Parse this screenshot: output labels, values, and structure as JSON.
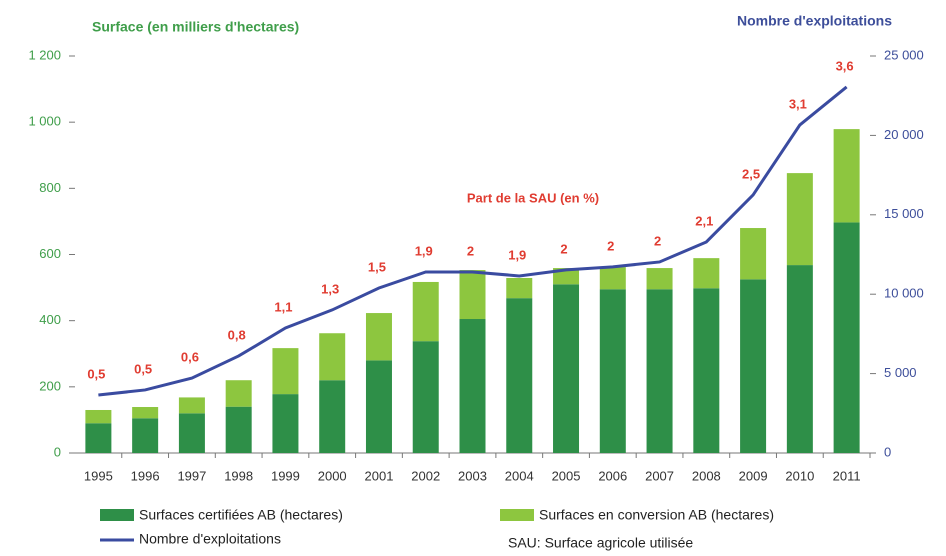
{
  "chart_data": {
    "type": "bar",
    "y_label": "Surface (en milliers d'hectares)",
    "y2_label": "Nombre d'exploitations",
    "categories": [
      "1995",
      "1996",
      "1997",
      "1998",
      "1999",
      "2000",
      "2001",
      "2002",
      "2003",
      "2004",
      "2005",
      "2006",
      "2007",
      "2008",
      "2009",
      "2010",
      "2011"
    ],
    "series": [
      {
        "name": "Surfaces certifiées AB (hectares)",
        "color": "#2e8f48",
        "stacked": true,
        "values": [
          90,
          105,
          120,
          140,
          178,
          220,
          280,
          338,
          405,
          468,
          510,
          495,
          495,
          498,
          525,
          568,
          697
        ]
      },
      {
        "name": "Surfaces en conversion AB (hectares)",
        "color": "#8dc63f",
        "stacked": true,
        "values": [
          40,
          34,
          48,
          80,
          139,
          142,
          143,
          179,
          148,
          61,
          49,
          67,
          64,
          91,
          155,
          278,
          282
        ]
      },
      {
        "name": "Nombre d'exploitations",
        "color": "#3a4ba0",
        "type": "line",
        "axis": "y2",
        "values": [
          3650,
          3970,
          4720,
          6110,
          7870,
          9010,
          10390,
          11400,
          11400,
          11150,
          11530,
          11720,
          12030,
          13290,
          16250,
          20660,
          23050
        ]
      }
    ],
    "sau_share": {
      "name": "Part de la SAU (en %)",
      "color": "#e03c31",
      "values": [
        0.5,
        0.5,
        0.6,
        0.8,
        1.1,
        1.3,
        1.5,
        1.9,
        2,
        1.9,
        2,
        2,
        2,
        2.1,
        2.5,
        3.1,
        3.6
      ],
      "value_labels": [
        "0,5",
        "0,5",
        "0,6",
        "0,8",
        "1,1",
        "1,3",
        "1,5",
        "1,9",
        "2",
        "1,9",
        "2",
        "2",
        "2",
        "2,1",
        "2,5",
        "3,1",
        "3,6"
      ]
    },
    "ylim": [
      0,
      1200
    ],
    "yticks": [
      0,
      200,
      400,
      600,
      800,
      {
        "value": 1000,
        "label": "1 000"
      },
      {
        "value": 1200,
        "label": "1 200"
      }
    ],
    "y2lim": [
      0,
      25000
    ],
    "y2ticks": [
      0,
      {
        "value": 5000,
        "label": "5 000"
      },
      {
        "value": 10000,
        "label": "10 000"
      },
      {
        "value": 15000,
        "label": "15 000"
      },
      {
        "value": 20000,
        "label": "20 000"
      },
      {
        "value": 25000,
        "label": "25 000"
      }
    ],
    "grid": false,
    "note": "SAU: Surface agricole utilisée"
  }
}
